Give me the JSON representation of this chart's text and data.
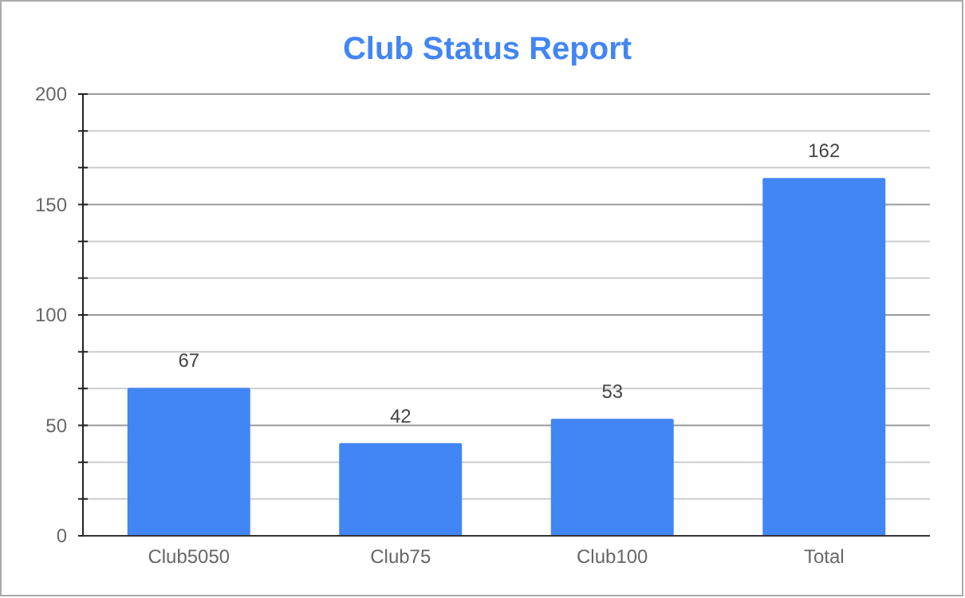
{
  "chart_data": {
    "type": "bar",
    "title": "Club Status Report",
    "categories": [
      "Club5050",
      "Club75",
      "Club100",
      "Total"
    ],
    "values": [
      67,
      42,
      53,
      162
    ],
    "color": "#4285f4",
    "ylim": [
      0,
      200
    ],
    "yticks": [
      0,
      {
        "value": 16.7,
        "label": null
      },
      {
        "value": 33.3,
        "label": null
      },
      50,
      {
        "value": 66.7,
        "label": null
      },
      {
        "value": 83.3,
        "label": null
      },
      100,
      {
        "value": 116.7,
        "label": null
      },
      {
        "value": 133.3,
        "label": null
      },
      150,
      {
        "value": 166.7,
        "label": null
      },
      {
        "value": 183.3,
        "label": null
      },
      200
    ],
    "grid": true,
    "data_labels": true
  }
}
